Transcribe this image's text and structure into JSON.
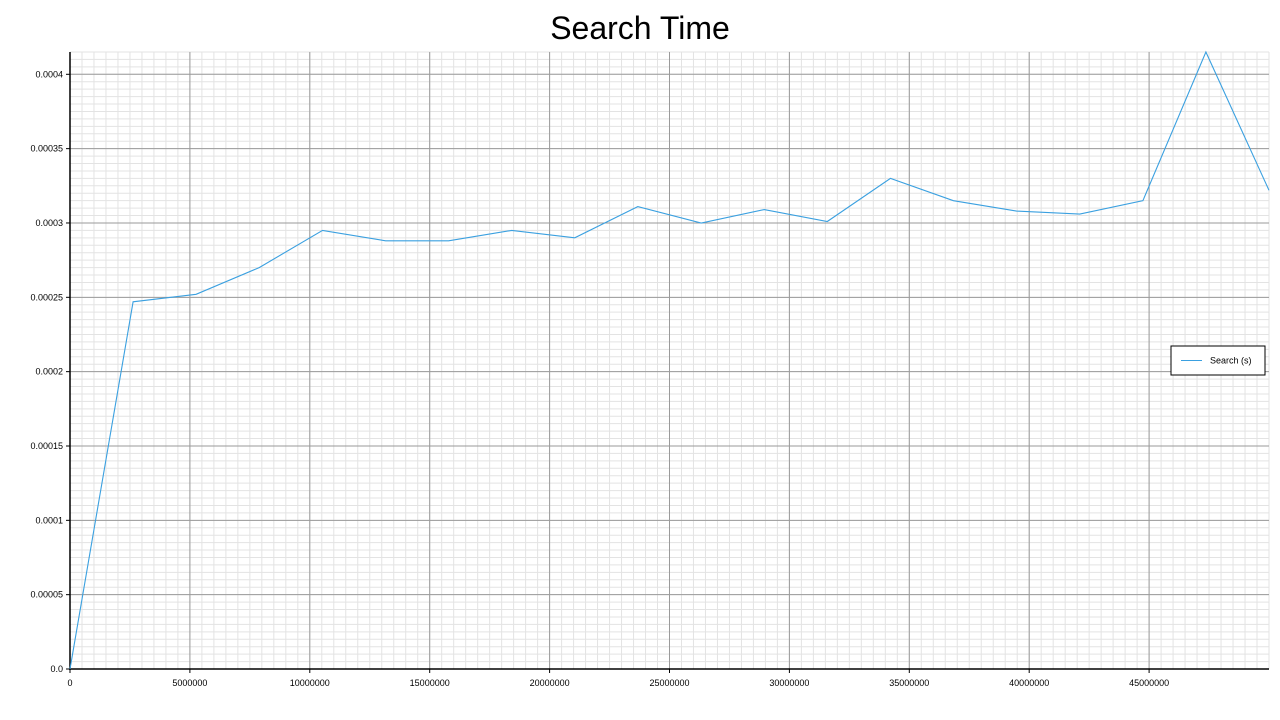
{
  "chart_data": {
    "type": "line",
    "title": "Search Time",
    "xlabel": "",
    "ylabel": "",
    "xlim": [
      0,
      50000000
    ],
    "ylim": [
      0,
      0.000415
    ],
    "grid": true,
    "legend_position": "right",
    "x_ticks": [
      0,
      5000000,
      10000000,
      15000000,
      20000000,
      25000000,
      30000000,
      35000000,
      40000000,
      45000000
    ],
    "x_tick_labels": [
      "0",
      "5000000",
      "10000000",
      "15000000",
      "20000000",
      "25000000",
      "30000000",
      "35000000",
      "40000000",
      "45000000"
    ],
    "y_ticks": [
      0,
      5e-05,
      0.0001,
      0.00015,
      0.0002,
      0.00025,
      0.0003,
      0.00035,
      0.0004
    ],
    "y_tick_labels": [
      "0.0",
      "0.00005",
      "0.0001",
      "0.00015",
      "0.0002",
      "0.00025",
      "0.0003",
      "0.00035",
      "0.0004"
    ],
    "series": [
      {
        "name": "Search (s)",
        "color": "#3aa0e0",
        "x": [
          0,
          2630000,
          5260000,
          7890000,
          10530000,
          13160000,
          15790000,
          18420000,
          21050000,
          23680000,
          26320000,
          28950000,
          31580000,
          34210000,
          36840000,
          39470000,
          42110000,
          44740000,
          47370000,
          50000000
        ],
        "y": [
          0,
          0.000247,
          0.000252,
          0.00027,
          0.000295,
          0.000288,
          0.000288,
          0.000295,
          0.00029,
          0.000311,
          0.0003,
          0.000309,
          0.000301,
          0.00033,
          0.000315,
          0.000308,
          0.000306,
          0.000315,
          0.000415,
          0.000322
        ]
      }
    ]
  }
}
